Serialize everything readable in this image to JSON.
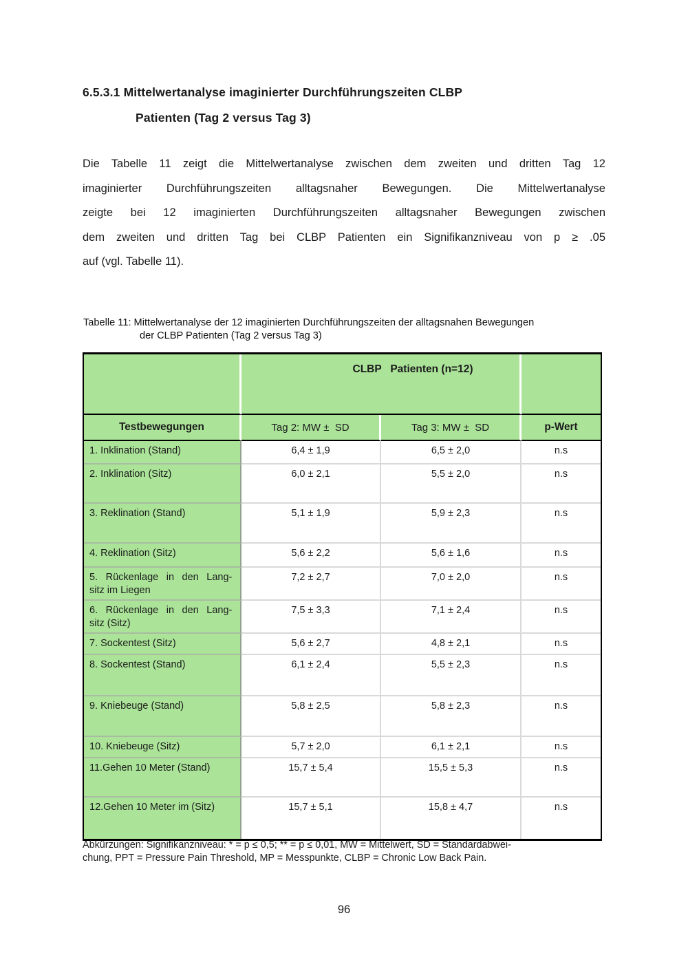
{
  "document": {
    "heading": {
      "line1": "6.5.3.1 Mittelwertanalyse imaginierter Durchführungszeiten CLBP",
      "line2": "Patienten (Tag 2 versus Tag 3)"
    },
    "paragraph_lines": [
      "Die Tabelle 11 zeigt die Mittelwertanalyse zwischen dem zweiten und dritten Tag 12",
      "imaginierter Durchführungszeiten alltagsnaher Bewegungen. Die Mittelwertanalyse",
      "zeigte bei 12 imaginierten Durchführungszeiten alltagsnaher Bewegungen zwischen",
      "dem zweiten und dritten Tag bei CLBP Patienten ein Signifikanzniveau von p ≥ .05",
      "auf (vgl. Tabelle 11)."
    ],
    "caption": {
      "line1": "Tabelle 11: Mittelwertanalyse der 12 imaginierten Durchführungszeiten der alltagsnahen Bewegungen",
      "line2": "der CLBP Patienten (Tag 2 versus Tag 3)"
    },
    "footnote": {
      "line1": "Abkürzungen: Signifikanzniveau: * = p ≤ 0,5; ** = p ≤ 0,01, MW = Mittelwert, SD = Standardabwei-",
      "line2": "chung, PPT = Pressure Pain Threshold, MP = Messpunkte, CLBP = Chronic Low Back Pain."
    },
    "page_number": "96"
  },
  "table": {
    "group_header": "CLBP   Patienten (n=12)",
    "column_headers": [
      "Testbewegungen",
      "Tag 2: MW ±  SD",
      "Tag 3: MW ±  SD",
      "p-Wert"
    ],
    "rows": [
      {
        "label_lines": [
          "1. Inklination (Stand)"
        ],
        "tag2": "6,4 ± 1,9",
        "tag3": "6,5 ± 2,0",
        "p": "n.s"
      },
      {
        "label_lines": [
          "2. Inklination (Sitz)"
        ],
        "tag2": "6,0 ± 2,1",
        "tag3": "5,5 ± 2,0",
        "p": "n.s"
      },
      {
        "label_lines": [
          "3. Reklination (Stand)"
        ],
        "tag2": "5,1 ± 1,9",
        "tag3": "5,9 ± 2,3",
        "p": "n.s"
      },
      {
        "label_lines": [
          "4. Reklination (Sitz)"
        ],
        "tag2": "5,6 ± 2,2",
        "tag3": "5,6 ± 1,6",
        "p": "n.s"
      },
      {
        "label_lines": [
          "5. Rückenlage in den Lang-",
          "sitz im Liegen"
        ],
        "tag2": "7,2 ± 2,7",
        "tag3": "7,0 ± 2,0",
        "p": "n.s"
      },
      {
        "label_lines": [
          "6. Rückenlage in den Lang-",
          "sitz (Sitz)"
        ],
        "tag2": "7,5 ± 3,3",
        "tag3": "7,1 ± 2,4",
        "p": "n.s"
      },
      {
        "label_lines": [
          "7. Sockentest (Sitz)"
        ],
        "tag2": "5,6 ± 2,7",
        "tag3": "4,8 ± 2,1",
        "p": "n.s"
      },
      {
        "label_lines": [
          "8. Sockentest (Stand)"
        ],
        "tag2": "6,1 ± 2,4",
        "tag3": "5,5 ± 2,3",
        "p": "n.s"
      },
      {
        "label_lines": [
          "9. Kniebeuge (Stand)"
        ],
        "tag2": "5,8 ± 2,5",
        "tag3": "5,8 ± 2,3",
        "p": "n.s"
      },
      {
        "label_lines": [
          "10. Kniebeuge (Sitz)"
        ],
        "tag2": "5,7 ± 2,0",
        "tag3": "6,1 ± 2,1",
        "p": "n.s"
      },
      {
        "label_lines": [
          "11.Gehen 10 Meter (Stand)"
        ],
        "tag2": "15,7 ± 5,4",
        "tag3": "15,5 ± 5,3",
        "p": "n.s"
      },
      {
        "label_lines": [
          "12.Gehen 10 Meter im (Sitz)"
        ],
        "tag2": "15,7 ± 5,1",
        "tag3": "15,8 ± 4,7",
        "p": "n.s"
      }
    ],
    "colors": {
      "header_green": "#abe399",
      "outer_border": "#000000",
      "grid_gray": "#d9d9d9",
      "label_divider": "#93a28c",
      "label_row_line": "#a9bba0"
    }
  }
}
